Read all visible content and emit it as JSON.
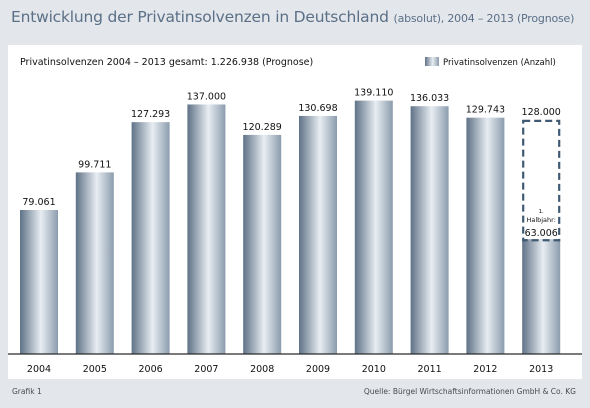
{
  "header": {
    "title_main": "Entwicklung der Privatinsolvenzen in Deutschland",
    "title_sub": "(absolut), 2004 – 2013 (Prognose)"
  },
  "footer": {
    "left": "Grafik 1",
    "source": "Quelle: Bürgel Wirtschaftsinformationen GmbH & Co. KG"
  },
  "colors": {
    "bar_dark": "#5f7287",
    "bar_light": "#e8edf2",
    "dashed": "#3f5a72",
    "title": "#5b6f86"
  },
  "chart_data": {
    "type": "bar",
    "subtitle": "Privatinsolvenzen 2004 – 2013 gesamt: 1.226.938 (Prognose)",
    "legend": "Privatinsolvenzen (Anzahl)",
    "legend_position": "top-right",
    "categories": [
      "2004",
      "2005",
      "2006",
      "2007",
      "2008",
      "2009",
      "2010",
      "2011",
      "2012",
      "2013"
    ],
    "values": [
      79061,
      99711,
      127293,
      137000,
      120289,
      130698,
      139110,
      136033,
      129743,
      63006
    ],
    "value_labels": [
      "79.061",
      "99.711",
      "127.293",
      "137.000",
      "120.289",
      "130.698",
      "139.110",
      "136.033",
      "129.743",
      "63.006"
    ],
    "forecast": {
      "category": "2013",
      "value": 128000,
      "label": "128.000"
    },
    "annotation": {
      "line1": "1.",
      "line2": "Halbjahr:"
    },
    "ylim": [
      0,
      140000
    ],
    "grid": false
  }
}
